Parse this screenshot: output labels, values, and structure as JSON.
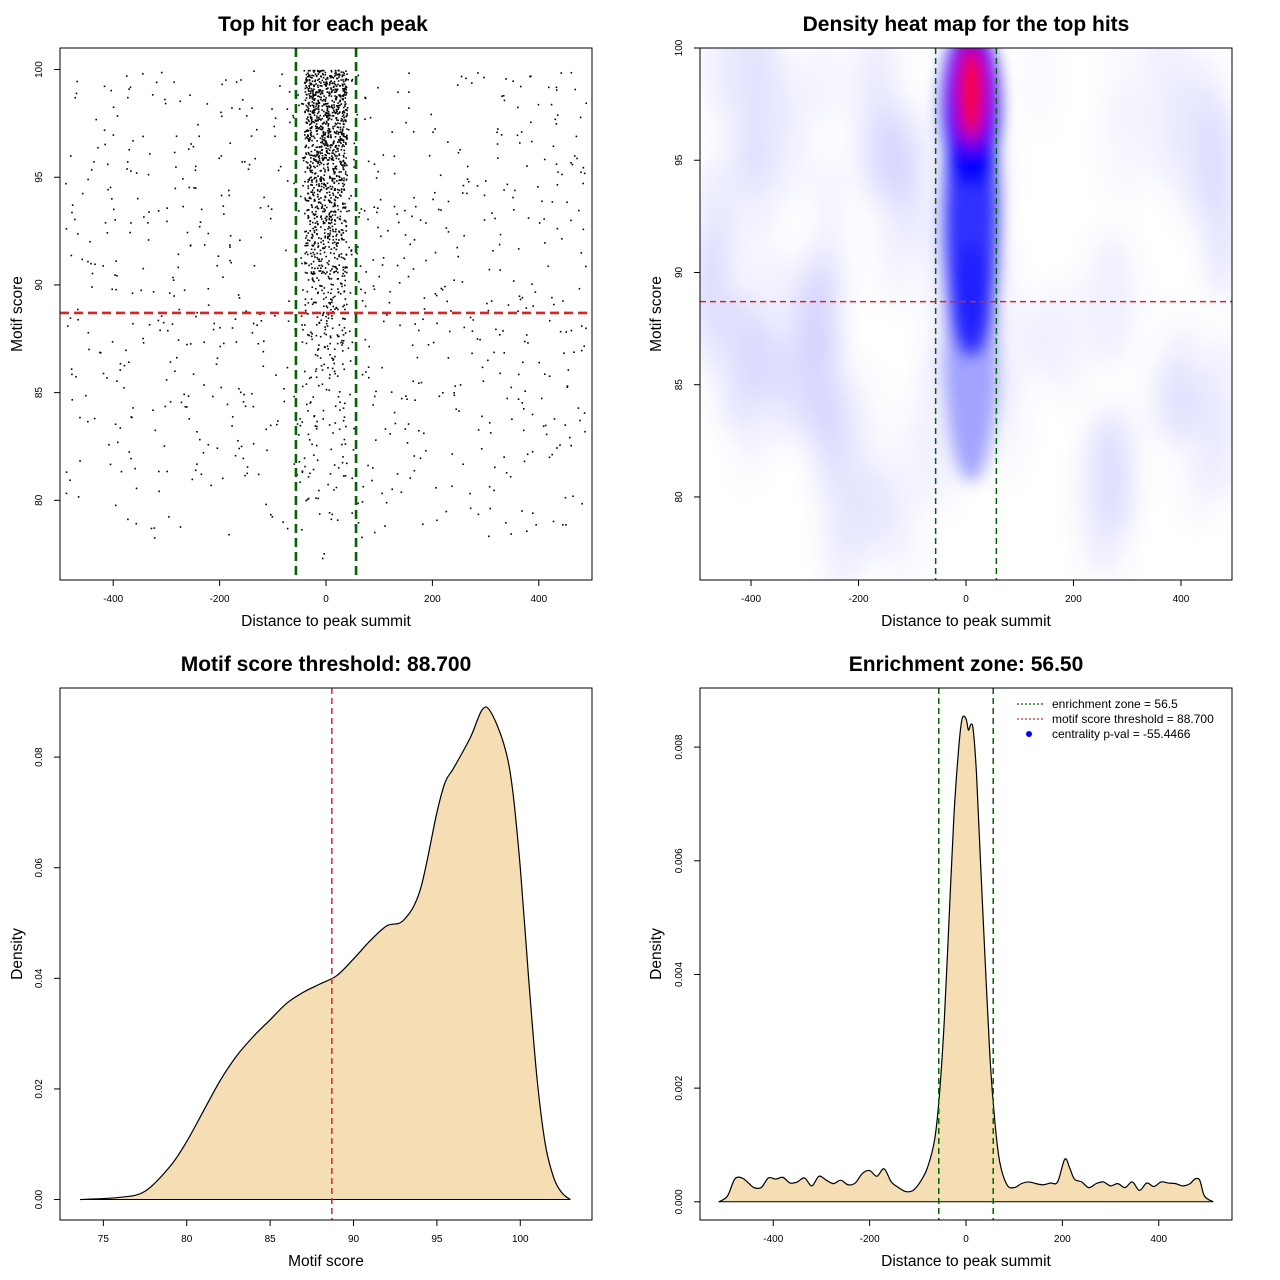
{
  "chart_data": [
    {
      "type": "scatter",
      "title": "Top hit for each peak",
      "xlabel": "Distance to peak summit",
      "ylabel": "Motif score",
      "xlim": [
        -500,
        500
      ],
      "ylim": [
        76.3,
        101.0
      ],
      "xticks": [
        -400,
        -200,
        0,
        200,
        400
      ],
      "yticks": [
        80,
        85,
        90,
        95,
        100
      ],
      "vlines": [
        -56.5,
        56.5
      ],
      "hline": 88.7,
      "vline_color": "#006400",
      "hline_color": "#d62728",
      "central_window": [
        -40,
        40
      ],
      "grid": false
    },
    {
      "type": "heatmap",
      "title": "Density heat map for the top hits",
      "xlabel": "Distance to peak summit",
      "ylabel": "Motif score",
      "xlim": [
        -495,
        495
      ],
      "ylim": [
        76.3,
        100.0
      ],
      "xticks": [
        -400,
        -200,
        0,
        200,
        400
      ],
      "yticks": [
        80,
        85,
        90,
        95,
        100
      ],
      "vlines": [
        -56.5,
        56.5
      ],
      "hline": 88.7,
      "hotspot": {
        "x": 10,
        "y": 98.0
      },
      "colors": [
        "#ffffff",
        "#0000ff",
        "#ff0000"
      ],
      "grid": false
    },
    {
      "type": "area",
      "title": "Motif score threshold: 88.700",
      "xlabel": "Motif score",
      "ylabel": "Density",
      "xlim": [
        72.4,
        104.3
      ],
      "ylim": [
        -0.0037,
        0.0925
      ],
      "xticks": [
        75,
        80,
        85,
        90,
        95,
        100
      ],
      "yticks": [
        0.0,
        0.02,
        0.04,
        0.06,
        0.08
      ],
      "ytick_labels": [
        "0.00",
        "0.02",
        "0.04",
        "0.06",
        "0.08"
      ],
      "vline": 88.7,
      "fill": "#f5deb3",
      "x": [
        73.6,
        76,
        77.5,
        79,
        80,
        81,
        82,
        83,
        84,
        85,
        86,
        87,
        88,
        89,
        90,
        91,
        92,
        93,
        94,
        95,
        95.5,
        96,
        97,
        97.7,
        98.2,
        99,
        99.5,
        100,
        100.5,
        101,
        101.5,
        102,
        102.5,
        103.0
      ],
      "y": [
        0.0,
        0.0004,
        0.0015,
        0.006,
        0.0105,
        0.016,
        0.0215,
        0.026,
        0.0295,
        0.0325,
        0.0355,
        0.0375,
        0.039,
        0.0405,
        0.0435,
        0.0468,
        0.0495,
        0.0505,
        0.056,
        0.07,
        0.0755,
        0.078,
        0.0835,
        0.0885,
        0.0883,
        0.0825,
        0.075,
        0.06,
        0.04,
        0.022,
        0.01,
        0.004,
        0.0012,
        0.0
      ],
      "grid": false
    },
    {
      "type": "area",
      "title": "Enrichment zone: 56.50",
      "xlabel": "Distance to peak summit",
      "ylabel": "Density",
      "xlim": [
        -552,
        552
      ],
      "ylim": [
        -0.00032,
        0.00904
      ],
      "xticks": [
        -400,
        -200,
        0,
        200,
        400
      ],
      "yticks": [
        0.0,
        0.002,
        0.004,
        0.006,
        0.008
      ],
      "ytick_labels": [
        "0.000",
        "0.002",
        "0.004",
        "0.006",
        "0.008"
      ],
      "vlines": [
        -56.5,
        56.5
      ],
      "fill": "#f5deb3",
      "x": [
        -513,
        -495,
        -480,
        -465,
        -450,
        -440,
        -425,
        -410,
        -395,
        -380,
        -365,
        -350,
        -335,
        -320,
        -305,
        -290,
        -275,
        -260,
        -245,
        -230,
        -215,
        -200,
        -185,
        -170,
        -155,
        -140,
        -125,
        -110,
        -95,
        -80,
        -65,
        -55,
        -45,
        -35,
        -25,
        -15,
        -8,
        0,
        5,
        10,
        15,
        22,
        30,
        40,
        50,
        60,
        70,
        85,
        100,
        115,
        130,
        145,
        160,
        175,
        190,
        205,
        215,
        225,
        240,
        255,
        270,
        285,
        300,
        315,
        330,
        345,
        360,
        375,
        390,
        405,
        420,
        435,
        450,
        465,
        475,
        485,
        495,
        513
      ],
      "y": [
        0.0,
        0.0001,
        0.0004,
        0.00042,
        0.00032,
        0.00025,
        0.00025,
        0.00042,
        0.0004,
        0.00043,
        0.00033,
        0.00035,
        0.00042,
        0.00028,
        0.00045,
        0.00038,
        0.00032,
        0.00038,
        0.0003,
        0.00033,
        0.0005,
        0.00055,
        0.00045,
        0.00058,
        0.00035,
        0.00025,
        0.00018,
        0.0002,
        0.00035,
        0.0006,
        0.0011,
        0.0019,
        0.0032,
        0.005,
        0.0068,
        0.008,
        0.0085,
        0.0085,
        0.0083,
        0.0084,
        0.0083,
        0.0075,
        0.006,
        0.0042,
        0.0025,
        0.0014,
        0.0007,
        0.0003,
        0.00025,
        0.00032,
        0.00035,
        0.00032,
        0.0003,
        0.00033,
        0.00035,
        0.00075,
        0.0006,
        0.0004,
        0.00035,
        0.00025,
        0.00032,
        0.00035,
        0.00028,
        0.00032,
        0.00025,
        0.00035,
        0.0002,
        0.00033,
        0.00027,
        0.00035,
        0.00033,
        0.00032,
        0.00028,
        0.00032,
        0.0004,
        0.00038,
        0.0001,
        0.0
      ],
      "legend": {
        "placement": "top-right",
        "entries": [
          "enrichment zone = 56.5",
          "motif score threshold = 88.700",
          "centrality p-val = -55.4466"
        ],
        "colors": [
          "#006400",
          "#d62728",
          "#0000ff"
        ]
      },
      "grid": false
    }
  ]
}
